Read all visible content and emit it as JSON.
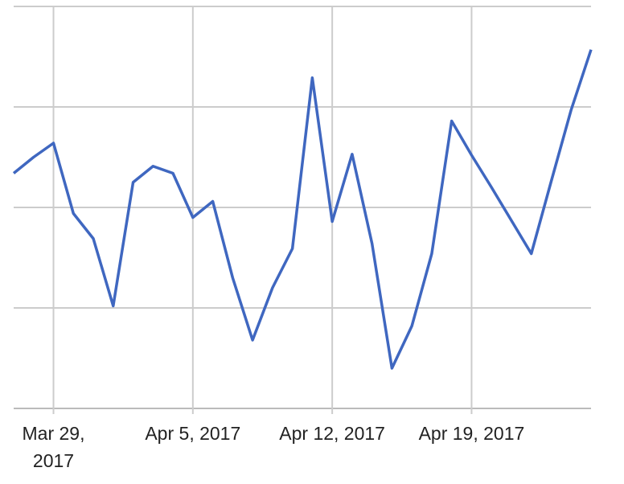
{
  "chart_data": {
    "type": "line",
    "x": [
      "2017-03-27",
      "2017-03-28",
      "2017-03-29",
      "2017-03-30",
      "2017-03-31",
      "2017-04-01",
      "2017-04-02",
      "2017-04-03",
      "2017-04-04",
      "2017-04-05",
      "2017-04-06",
      "2017-04-07",
      "2017-04-08",
      "2017-04-09",
      "2017-04-10",
      "2017-04-11",
      "2017-04-12",
      "2017-04-13",
      "2017-04-14",
      "2017-04-15",
      "2017-04-16",
      "2017-04-17",
      "2017-04-18",
      "2017-04-19",
      "2017-04-20",
      "2017-04-21",
      "2017-04-22",
      "2017-04-23",
      "2017-04-24",
      "2017-04-25"
    ],
    "series": [
      {
        "color": "#3f67c0",
        "values": [
          2.34,
          2.5,
          2.64,
          1.94,
          1.69,
          1.02,
          2.25,
          2.41,
          2.34,
          1.9,
          2.06,
          1.3,
          0.68,
          1.2,
          1.59,
          3.29,
          1.86,
          2.53,
          1.64,
          0.4,
          0.82,
          1.54,
          2.86,
          2.52,
          2.2,
          1.87,
          1.54,
          2.26,
          2.97,
          3.57
        ]
      }
    ],
    "xlim": [
      "2017-03-27",
      "2017-04-25"
    ],
    "xticks": [
      {
        "value": "2017-03-29",
        "label": "Mar 29, 2017"
      },
      {
        "value": "2017-04-05",
        "label": "Apr 5, 2017"
      },
      {
        "value": "2017-04-12",
        "label": "Apr 12, 2017"
      },
      {
        "value": "2017-04-19",
        "label": "Apr 19, 2017"
      }
    ],
    "ylim": [
      0,
      4
    ],
    "yticks": [
      0,
      1,
      2,
      3,
      4
    ],
    "y_tick_labels": false,
    "grid": true
  }
}
